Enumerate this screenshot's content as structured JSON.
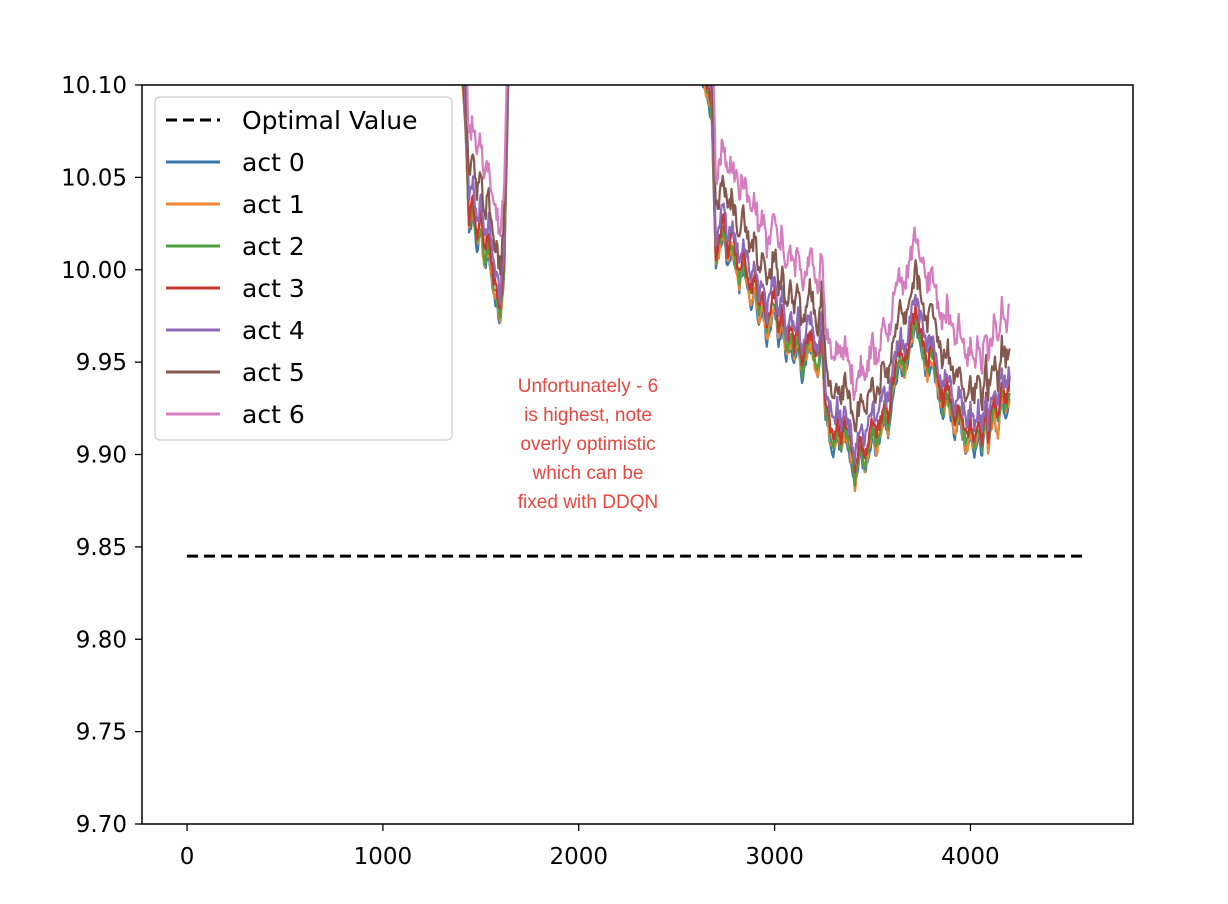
{
  "chart_data": {
    "type": "line",
    "title": "",
    "xlabel": "",
    "ylabel": "",
    "xlim": [
      -230,
      4830
    ],
    "ylim": [
      9.7,
      10.1
    ],
    "x_ticks": [
      0,
      1000,
      2000,
      3000,
      4000
    ],
    "y_ticks": [
      9.7,
      9.75,
      9.8,
      9.85,
      9.9,
      9.95,
      10.0,
      10.05,
      10.1
    ],
    "x_tick_labels": [
      "0",
      "1000",
      "2000",
      "3000",
      "4000"
    ],
    "y_tick_labels": [
      "9.70",
      "9.75",
      "9.80",
      "9.85",
      "9.90",
      "9.95",
      "10.00",
      "10.05",
      "10.10"
    ],
    "grid": false,
    "legend_position": "upper-left",
    "reference_line": {
      "name": "Optimal Value",
      "value": 9.845,
      "x_range": [
        0,
        4600
      ],
      "color": "#000000",
      "style": "dashed"
    },
    "base_curve": {
      "x": [
        1400,
        1420,
        1440,
        1460,
        1480,
        1500,
        1520,
        1540,
        1560,
        1580,
        1600,
        1620,
        1640,
        1660,
        2500,
        2550,
        2600,
        2640,
        2660,
        2680,
        2700,
        2720,
        2740,
        2760,
        2780,
        2800,
        2820,
        2840,
        2860,
        2880,
        2900,
        2920,
        2940,
        2960,
        2980,
        3000,
        3020,
        3040,
        3060,
        3080,
        3100,
        3120,
        3140,
        3160,
        3180,
        3200,
        3220,
        3240,
        3260,
        3280,
        3300,
        3320,
        3340,
        3360,
        3380,
        3400,
        3410,
        3420,
        3440,
        3460,
        3480,
        3500,
        3520,
        3540,
        3560,
        3580,
        3600,
        3620,
        3640,
        3660,
        3680,
        3700,
        3720,
        3740,
        3760,
        3780,
        3800,
        3820,
        3840,
        3860,
        3880,
        3900,
        3920,
        3940,
        3960,
        3980,
        4000,
        4020,
        4040,
        4060,
        4080,
        4090,
        4100,
        4120,
        4140,
        4160,
        4180,
        4200
      ],
      "y": [
        10.11,
        10.08,
        10.02,
        10.03,
        10.01,
        10.02,
        10.0,
        10.01,
        9.99,
        9.98,
        9.97,
        10.0,
        10.1,
        10.13,
        10.13,
        10.12,
        10.11,
        10.1,
        10.09,
        10.08,
        10.0,
        10.01,
        10.02,
        10.0,
        10.01,
        10.0,
        9.99,
        10.0,
        9.99,
        9.98,
        9.99,
        9.97,
        9.98,
        9.96,
        9.97,
        9.98,
        9.96,
        9.97,
        9.95,
        9.96,
        9.95,
        9.96,
        9.94,
        9.95,
        9.96,
        9.95,
        9.94,
        9.96,
        9.92,
        9.91,
        9.9,
        9.91,
        9.9,
        9.91,
        9.9,
        9.89,
        9.88,
        9.89,
        9.9,
        9.89,
        9.9,
        9.91,
        9.9,
        9.91,
        9.92,
        9.91,
        9.93,
        9.94,
        9.95,
        9.94,
        9.95,
        9.96,
        9.97,
        9.96,
        9.95,
        9.94,
        9.95,
        9.94,
        9.93,
        9.92,
        9.93,
        9.92,
        9.91,
        9.92,
        9.91,
        9.9,
        9.91,
        9.9,
        9.91,
        9.9,
        9.92,
        9.9,
        9.91,
        9.92,
        9.91,
        9.93,
        9.92,
        9.93
      ]
    },
    "series": [
      {
        "name": "act 0",
        "color": "#3b75af",
        "offset": 0.0
      },
      {
        "name": "act 1",
        "color": "#ef8636",
        "offset": 0.002
      },
      {
        "name": "act 2",
        "color": "#519e3e",
        "offset": 0.005
      },
      {
        "name": "act 3",
        "color": "#c53932",
        "offset": 0.009
      },
      {
        "name": "act 4",
        "color": "#8d69b8",
        "offset": 0.016
      },
      {
        "name": "act 5",
        "color": "#84584e",
        "offset": 0.03
      },
      {
        "name": "act 6",
        "color": "#d57dbe",
        "offset": 0.05
      }
    ],
    "annotation": [
      "Unfortunately - 6",
      "is highest, note",
      "overly optimistic",
      "which can be",
      "fixed with DDQN"
    ]
  }
}
